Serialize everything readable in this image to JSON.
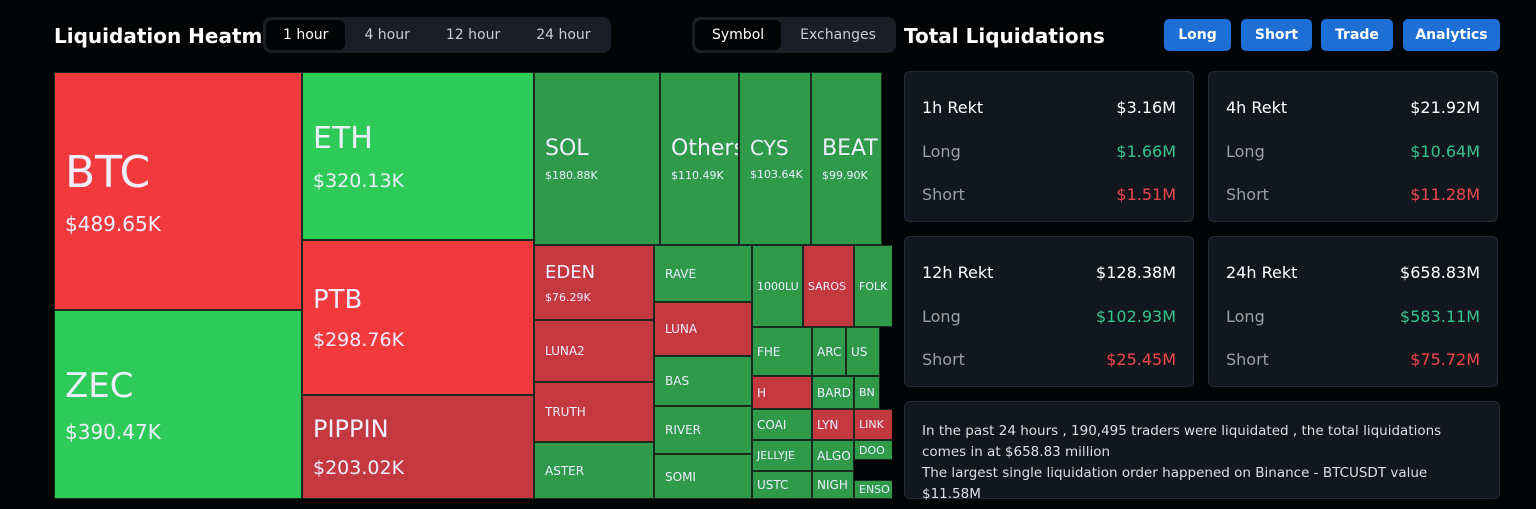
{
  "header": {
    "title": "Liquidation Heatmap",
    "time_tabs": [
      "1 hour",
      "4 hour",
      "12 hour",
      "24 hour"
    ],
    "view_tabs": [
      "Symbol",
      "Exchanges"
    ]
  },
  "heatmap": {
    "tiles": [
      {
        "label": "BTC",
        "value": "$489.65K",
        "color": "#f23a3c"
      },
      {
        "label": "ZEC",
        "value": "$390.47K",
        "color": "#2ecb58"
      },
      {
        "label": "ETH",
        "value": "$320.13K",
        "color": "#2ecb58"
      },
      {
        "label": "PTB",
        "value": "$298.76K",
        "color": "#f23a3c"
      },
      {
        "label": "PIPPIN",
        "value": "$203.02K",
        "color": "#c4383f"
      },
      {
        "label": "SOL",
        "value": "$180.88K",
        "color": "#2e9a4a"
      },
      {
        "label": "Others",
        "value": "$110.49K",
        "color": "#2e9a4a"
      },
      {
        "label": "CYS",
        "value": "$103.64K",
        "color": "#2e9a4a"
      },
      {
        "label": "BEAT",
        "value": "$99.90K",
        "color": "#2e9a4a"
      },
      {
        "label": "EDEN",
        "value": "$76.29K",
        "color": "#c4383f"
      },
      {
        "label": "LUNA2",
        "color": "#c4383f"
      },
      {
        "label": "TRUTH",
        "color": "#c4383f"
      },
      {
        "label": "ASTER",
        "color": "#2e9a4a"
      },
      {
        "label": "RAVE",
        "color": "#2e9a4a"
      },
      {
        "label": "LUNA",
        "color": "#c4383f"
      },
      {
        "label": "BAS",
        "color": "#2e9a4a"
      },
      {
        "label": "RIVER",
        "color": "#2e9a4a"
      },
      {
        "label": "SOMI",
        "color": "#2e9a4a"
      },
      {
        "label": "1000LU",
        "color": "#2e9a4a"
      },
      {
        "label": "SAROS",
        "color": "#c4383f"
      },
      {
        "label": "FOLK",
        "color": "#2e9a4a"
      },
      {
        "label": "FHE",
        "color": "#2e9a4a"
      },
      {
        "label": "ARC",
        "color": "#2e9a4a"
      },
      {
        "label": "US",
        "color": "#2e9a4a"
      },
      {
        "label": "H",
        "color": "#c4383f"
      },
      {
        "label": "BARD",
        "color": "#2e9a4a"
      },
      {
        "label": "BN",
        "color": "#2e9a4a"
      },
      {
        "label": "COAI",
        "color": "#2e9a4a"
      },
      {
        "label": "LYN",
        "color": "#c4383f"
      },
      {
        "label": "LINK",
        "color": "#c4383f"
      },
      {
        "label": "JELLYJE",
        "color": "#2e9a4a"
      },
      {
        "label": "ALGO",
        "color": "#2e9a4a"
      },
      {
        "label": "DOO",
        "color": "#2e9a4a"
      },
      {
        "label": "USTC",
        "color": "#2e9a4a"
      },
      {
        "label": "NIGH",
        "color": "#2e9a4a"
      },
      {
        "label": "ENSO",
        "color": "#2e9a4a"
      }
    ]
  },
  "panel": {
    "title": "Total Liquidations",
    "buttons": [
      "Long",
      "Short",
      "Trade",
      "Analytics"
    ],
    "cards": [
      {
        "title": "1h Rekt",
        "total": "$3.16M",
        "long_label": "Long",
        "long": "$1.66M",
        "short_label": "Short",
        "short": "$1.51M"
      },
      {
        "title": "4h Rekt",
        "total": "$21.92M",
        "long_label": "Long",
        "long": "$10.64M",
        "short_label": "Short",
        "short": "$11.28M"
      },
      {
        "title": "12h Rekt",
        "total": "$128.38M",
        "long_label": "Long",
        "long": "$102.93M",
        "short_label": "Short",
        "short": "$25.45M"
      },
      {
        "title": "24h Rekt",
        "total": "$658.83M",
        "long_label": "Long",
        "long": "$583.11M",
        "short_label": "Short",
        "short": "$75.72M"
      }
    ],
    "summary": [
      "In the past 24 hours , 190,495 traders were liquidated , the total liquidations comes in at $658.83 million",
      "The largest single liquidation order happened on Binance - BTCUSDT value $11.58M"
    ]
  }
}
